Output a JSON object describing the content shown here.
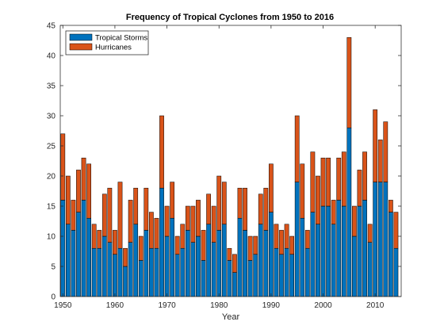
{
  "chart_data": {
    "type": "bar",
    "stacked": true,
    "title": "Frequency of Tropical Cyclones from 1950 to 2016",
    "xlabel": "Year",
    "ylabel": "",
    "xlim": [
      1949.5,
      2015
    ],
    "ylim": [
      0,
      45
    ],
    "x_ticks": [
      1950,
      1960,
      1970,
      1980,
      1990,
      2000,
      2010
    ],
    "y_ticks": [
      0,
      5,
      10,
      15,
      20,
      25,
      30,
      35,
      40,
      45
    ],
    "grid": false,
    "legend_position": "top-left",
    "x": [
      1950,
      1951,
      1952,
      1953,
      1954,
      1955,
      1956,
      1957,
      1958,
      1959,
      1960,
      1961,
      1962,
      1963,
      1964,
      1965,
      1966,
      1967,
      1968,
      1969,
      1970,
      1971,
      1972,
      1973,
      1974,
      1975,
      1976,
      1977,
      1978,
      1979,
      1980,
      1981,
      1982,
      1983,
      1984,
      1985,
      1986,
      1987,
      1988,
      1989,
      1990,
      1991,
      1992,
      1993,
      1994,
      1995,
      1996,
      1997,
      1998,
      1999,
      2000,
      2001,
      2002,
      2003,
      2004,
      2005,
      2006,
      2007,
      2008,
      2009,
      2010,
      2011,
      2012,
      2013,
      2014
    ],
    "series": [
      {
        "name": "Tropical Storms",
        "color": "#0072bd",
        "values": [
          16,
          12,
          11,
          14,
          16,
          13,
          8,
          8,
          10,
          9,
          7,
          8,
          5,
          9,
          12,
          6,
          11,
          8,
          8,
          18,
          10,
          13,
          7,
          8,
          11,
          9,
          10,
          6,
          12,
          9,
          11,
          12,
          6,
          4,
          13,
          11,
          6,
          7,
          12,
          11,
          14,
          8,
          7,
          8,
          7,
          19,
          13,
          8,
          14,
          12,
          15,
          15,
          12,
          16,
          15,
          28,
          10,
          15,
          16,
          9,
          19,
          19,
          19,
          14,
          8
        ]
      },
      {
        "name": "Hurricanes",
        "color": "#d95319",
        "values": [
          11,
          8,
          5,
          7,
          7,
          9,
          4,
          3,
          7,
          9,
          4,
          11,
          3,
          7,
          6,
          4,
          7,
          6,
          5,
          12,
          5,
          6,
          3,
          4,
          4,
          6,
          6,
          5,
          5,
          6,
          9,
          7,
          2,
          3,
          5,
          7,
          4,
          3,
          5,
          7,
          8,
          4,
          4,
          4,
          3,
          11,
          9,
          3,
          10,
          8,
          8,
          8,
          4,
          7,
          9,
          15,
          5,
          6,
          8,
          3,
          12,
          7,
          10,
          2,
          6
        ]
      }
    ]
  },
  "colors": {
    "axis": "#262626",
    "background": "#ffffff"
  }
}
